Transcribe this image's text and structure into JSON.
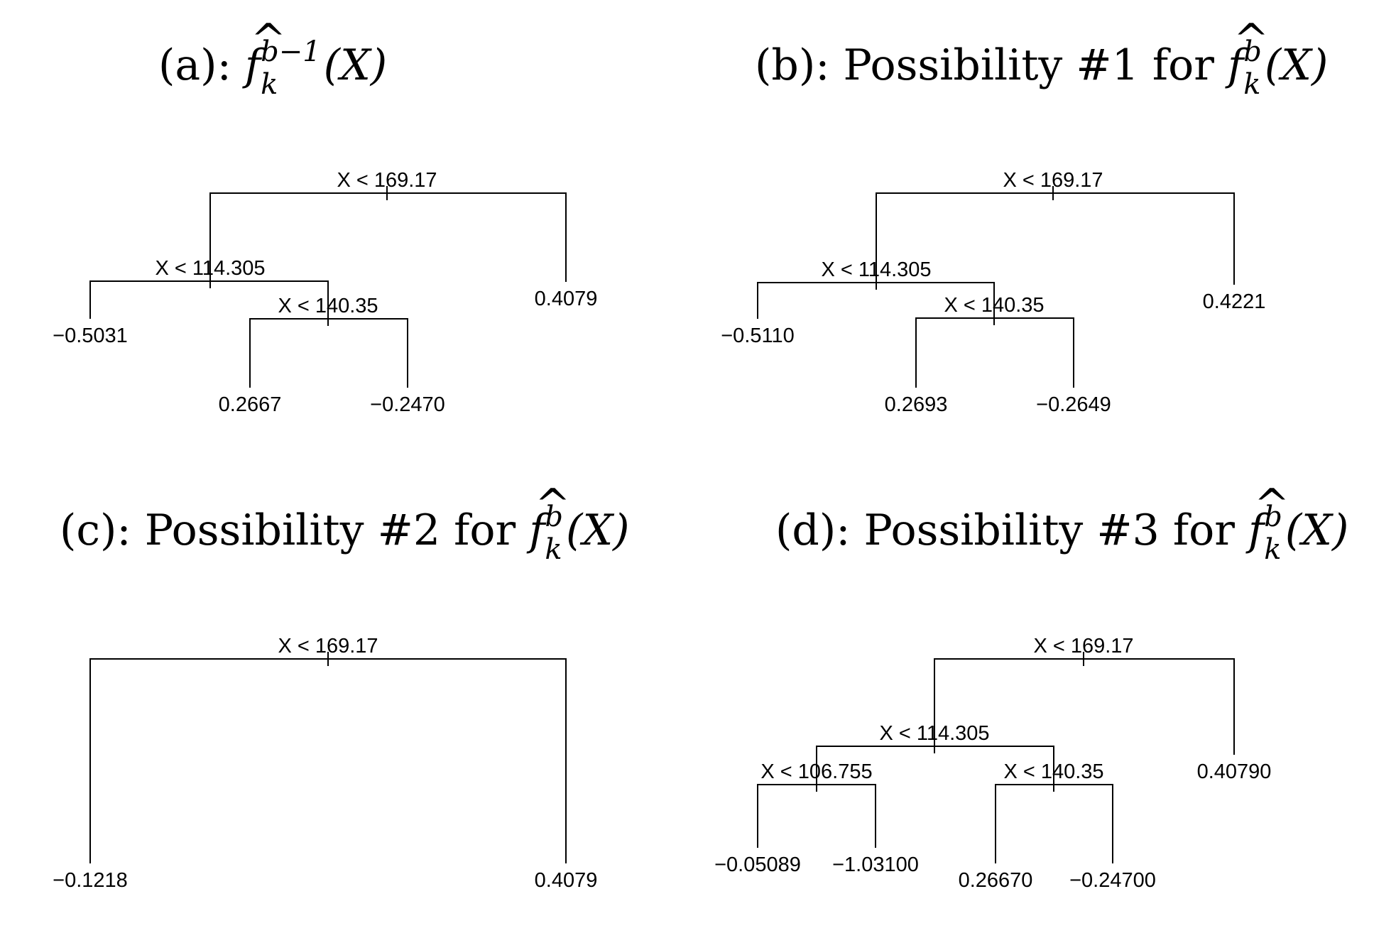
{
  "panels": [
    {
      "id": "a",
      "title": {
        "prefix": "(a):  ",
        "f": "f",
        "sup": "b−1",
        "sub": "k",
        "arg": "(X)"
      },
      "tree": {
        "split": "X < 169.17",
        "left": {
          "split": "X < 114.305",
          "left": {
            "leaf": "−0.5031"
          },
          "right": {
            "split": "X < 140.35",
            "left": {
              "leaf": "0.2667"
            },
            "right": {
              "leaf": "−0.2470"
            }
          }
        },
        "right": {
          "leaf": "0.4079"
        }
      }
    },
    {
      "id": "b",
      "title": {
        "prefix": "(b):  Possibility #1 for ",
        "f": "f",
        "sup": "b",
        "sub": "k",
        "arg": "(X)"
      },
      "tree": {
        "split": "X < 169.17",
        "left": {
          "split": "X < 114.305",
          "left": {
            "leaf": "−0.5110"
          },
          "right": {
            "split": "X < 140.35",
            "left": {
              "leaf": "0.2693"
            },
            "right": {
              "leaf": "−0.2649"
            }
          }
        },
        "right": {
          "leaf": "0.4221"
        }
      }
    },
    {
      "id": "c",
      "title": {
        "prefix": "(c):  Possibility #2 for ",
        "f": "f",
        "sup": "b",
        "sub": "k",
        "arg": "(X)"
      },
      "tree": {
        "split": "X < 169.17",
        "left": {
          "leaf": "−0.1218"
        },
        "right": {
          "leaf": "0.4079"
        }
      }
    },
    {
      "id": "d",
      "title": {
        "prefix": "(d):  Possibility #3 for ",
        "f": "f",
        "sup": "b",
        "sub": "k",
        "arg": "(X)"
      },
      "tree": {
        "split": "X < 169.17",
        "left": {
          "split": "X < 114.305",
          "left": {
            "split": "X < 106.755",
            "left": {
              "leaf": "−0.05089"
            },
            "right": {
              "leaf": "−1.03100"
            }
          },
          "right": {
            "split": "X < 140.35",
            "left": {
              "leaf": "0.26670"
            },
            "right": {
              "leaf": "−0.24700"
            }
          }
        },
        "right": {
          "leaf": "0.40790"
        }
      }
    }
  ]
}
